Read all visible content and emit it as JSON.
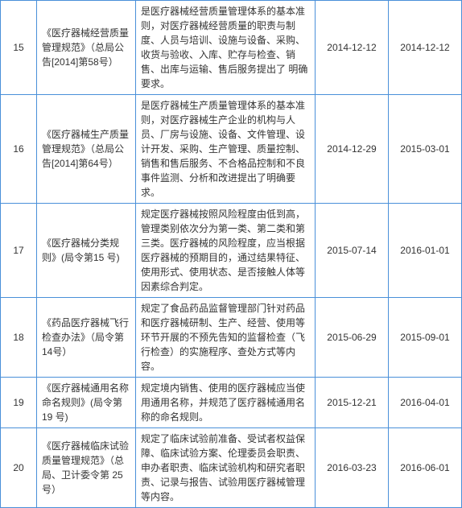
{
  "colors": {
    "border": "#4a90d9",
    "text": "#333333",
    "background": "#ffffff"
  },
  "columns": {
    "idx_width": 32,
    "title_width": 110,
    "desc_width": 210,
    "date_width": 78
  },
  "rows": [
    {
      "idx": "15",
      "title": "《医疗器械经营质量管理规范》（总局公告[2014]第58号）",
      "desc": "是医疗器械经营质量管理体系的基本准则，对医疗器械经营质量的职责与制度、人员与培训、设施与设备、采购、收货与验收、入库、贮存与检查、销售、出库与运输、售后服务提出了 明确要求。",
      "date1": "2014-12-12",
      "date2": "2014-12-12"
    },
    {
      "idx": "16",
      "title": "《医疗器械生产质量管理规范》（总局公告[2014]第64号）",
      "desc": "是医疗器械生产质量管理体系的基本准则，对医疗器械生产企业的机构与人员、厂房与设施、设备、文件管理、设计开发、采购、生产管理、质量控制、销售和售后服务、不合格品控制和不良事件监测、分析和改进提出了明确要求。",
      "date1": "2014-12-29",
      "date2": "2015-03-01"
    },
    {
      "idx": "17",
      "title": "《医疗器械分类规则》(局令第15 号)",
      "desc": "规定医疗器械按照风险程度由低到高，管理类别依次分为第一类、第二类和第三类。医疗器械的风险程度，应当根据医疗器械的预期目的，通过结果特征、使用形式、使用状态、是否接触人体等因素综合判定。",
      "date1": "2015-07-14",
      "date2": "2016-01-01"
    },
    {
      "idx": "18",
      "title": "《药品医疗器械飞行检查办法》（局令第14号）",
      "desc": "规定了食品药品监督管理部门针对药品和医疗器械研制、生产、经营、使用等环节开展的不预先告知的监督检查（飞行检查）的实施程序、查处方式等内容。",
      "date1": "2015-06-29",
      "date2": "2015-09-01"
    },
    {
      "idx": "19",
      "title": "《医疗器械通用名称命名规则》(局令第 19 号)",
      "desc": "规定境内销售、使用的医疗器械应当使用通用名称，并规范了医疗器械通用名称的命名规则。",
      "date1": "2015-12-21",
      "date2": "2016-04-01"
    },
    {
      "idx": "20",
      "title": "《医疗器械临床试验质量管理规范》（总局、卫计委令第 25 号）",
      "desc": "规定了临床试验前准备、受试者权益保障、临床试验方案、伦理委员会职责、申办者职责、临床试验机构和研究者职责、记录与报告、试验用医疗器械管理等内容。",
      "date1": "2016-03-23",
      "date2": "2016-06-01"
    }
  ]
}
